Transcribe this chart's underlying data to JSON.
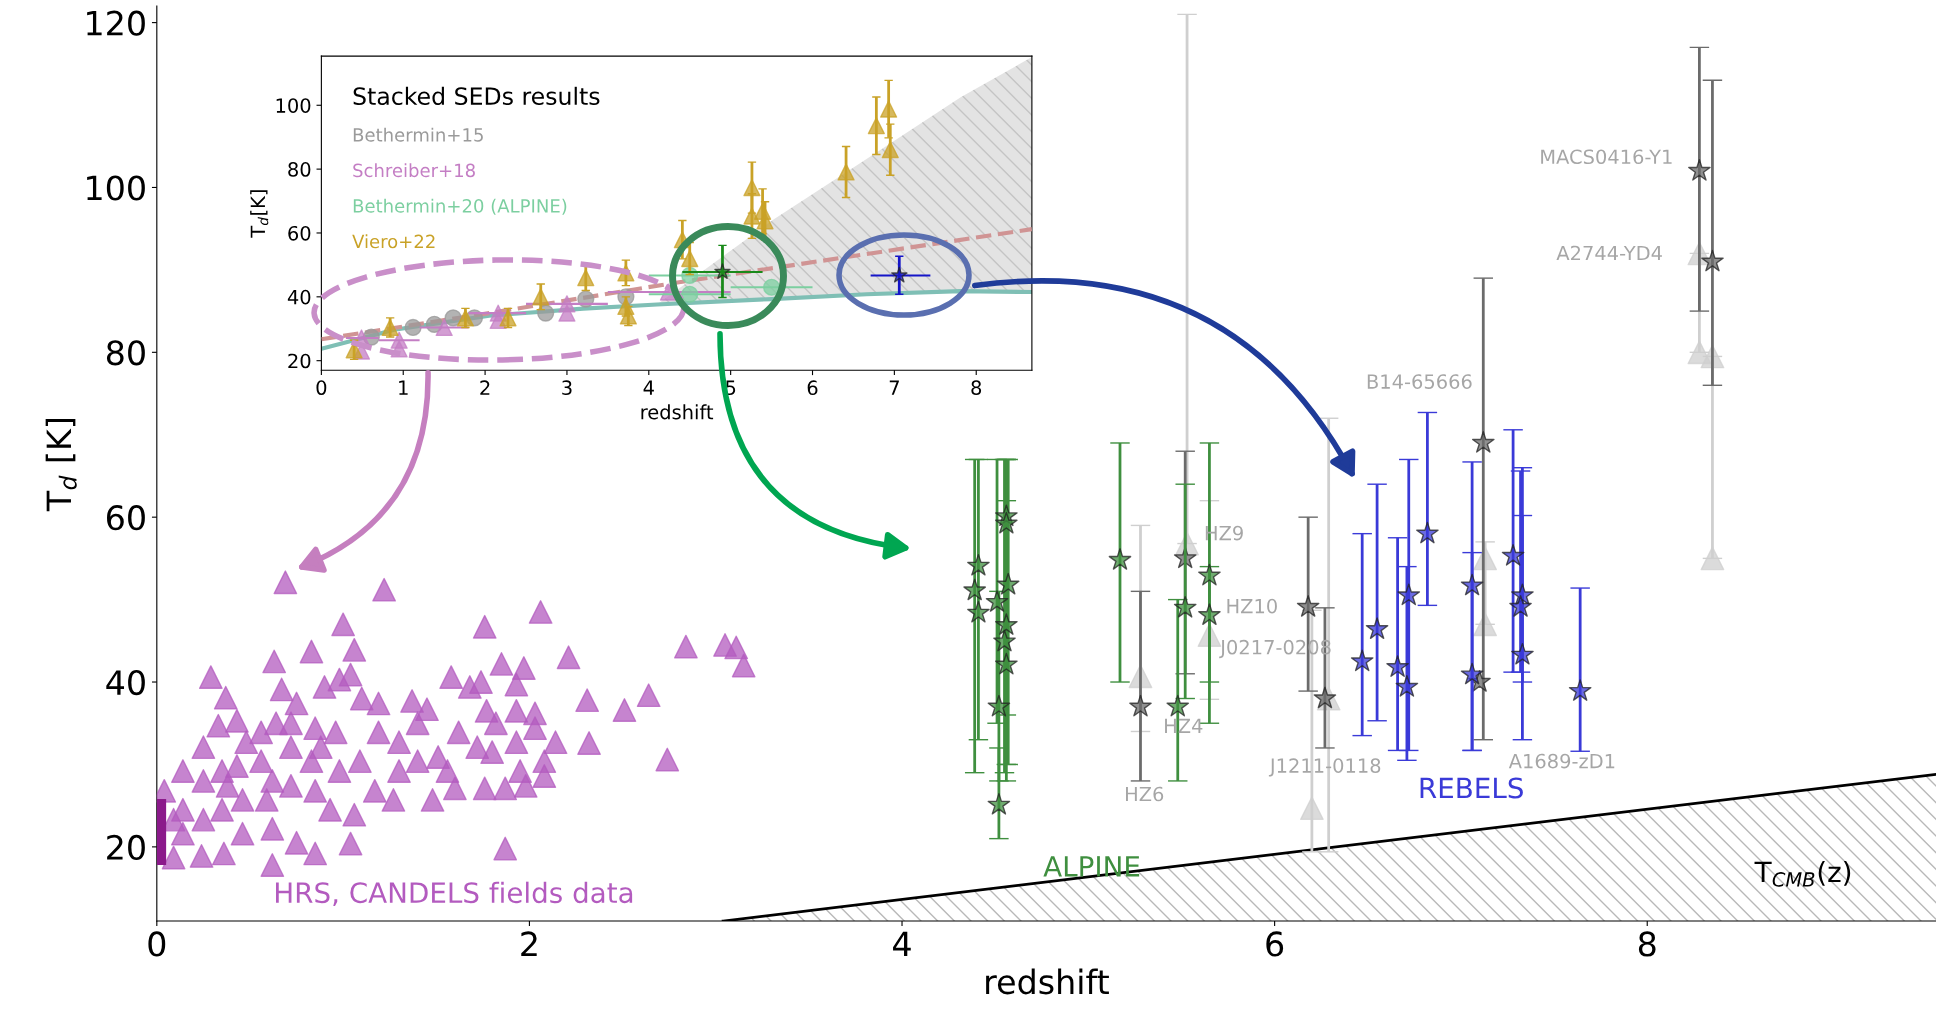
{
  "chart_data": [
    {
      "type": "scatter",
      "xlabel": "redshift",
      "ylabel": "T$_{d}$ [K]",
      "xlim": [
        0,
        9.55
      ],
      "ylim": [
        11,
        122
      ],
      "xticks": [
        0,
        2,
        4,
        6,
        8
      ],
      "yticks": [
        20,
        40,
        60,
        80,
        100,
        120
      ],
      "legend": false,
      "annotations": [
        {
          "text": "MACS0416-Y1",
          "x": 8.28,
          "y": 102.0
        },
        {
          "text": "A2744-YD4",
          "x": 8.35,
          "y": 91.0
        },
        {
          "text": "B14-65666",
          "x": 7.12,
          "y": 69.0
        },
        {
          "text": "HZ9",
          "x": 5.52,
          "y": 55.0
        },
        {
          "text": "HZ10",
          "x": 5.52,
          "y": 49.0
        },
        {
          "text": "J0217-0208",
          "x": 5.65,
          "y": 45.7
        },
        {
          "text": "HZ4",
          "x": 5.48,
          "y": 37.0
        },
        "HZ6",
        "J1211-0118",
        "A1689-zD1"
      ],
      "series": [
        {
          "type": "area",
          "name": "T$_{CMB}$(z)",
          "color": "#000000",
          "x": [
            3.04,
            9.55
          ],
          "values": [
            11.0,
            28.8
          ]
        },
        {
          "name": "HRS, CANDELS fields data",
          "color": "#b35bbf",
          "marker": "triangle",
          "x": [
            0.69,
            1.22,
            1.0,
            1.76,
            2.06,
            0.63,
            0.83,
            1.06,
            0.29,
            0.37,
            0.67,
            0.75,
            0.9,
            0.98,
            1.04,
            1.1,
            1.19,
            1.37,
            1.45,
            1.58,
            1.68,
            1.74,
            1.85,
            1.93,
            1.97,
            1.77,
            1.93,
            2.03,
            2.21,
            2.31,
            2.51,
            2.64,
            2.84,
            3.05,
            3.11,
            3.15,
            2.32,
            2.74,
            2.14,
            2.08,
            1.98,
            1.87,
            1.87,
            1.76,
            1.6,
            1.48,
            1.27,
            1.17,
            1.06,
            1.04,
            0.85,
            0.75,
            0.62,
            0.36,
            0.24,
            0.09,
            0.04,
            0.14,
            0.25,
            0.33,
            0.43,
            0.56,
            0.64,
            0.72,
            0.85,
            0.96,
            0.88,
            0.72,
            0.56,
            0.43,
            0.38,
            0.25,
            0.14,
            0.25,
            0.35,
            0.46,
            0.59,
            0.72,
            0.85,
            0.98,
            1.09,
            1.19,
            1.3,
            1.4,
            1.51,
            1.62,
            1.72,
            1.8,
            1.93,
            2.03,
            1.82,
            1.56,
            1.4,
            1.3,
            1.95,
            2.08,
            0.62,
            0.46,
            0.14,
            0.09,
            0.35,
            0.48,
            0.62,
            0.83,
            0.93
          ],
          "values": [
            52.1,
            51.2,
            47.0,
            46.7,
            48.5,
            42.5,
            43.7,
            43.9,
            40.6,
            38.1,
            39.1,
            37.4,
            39.4,
            40.3,
            40.9,
            38.0,
            37.4,
            37.7,
            36.7,
            40.6,
            39.4,
            40.0,
            42.2,
            39.7,
            41.7,
            36.5,
            36.5,
            36.2,
            43.0,
            37.8,
            36.6,
            38.4,
            44.3,
            44.5,
            44.2,
            42.0,
            32.6,
            30.6,
            32.7,
            30.4,
            27.4,
            27.1,
            19.8,
            27.1,
            27.1,
            25.7,
            25.7,
            26.8,
            23.9,
            20.4,
            19.2,
            20.5,
            17.8,
            19.2,
            18.9,
            18.7,
            26.8,
            29.2,
            32.1,
            34.7,
            35.3,
            33.9,
            35.0,
            35.0,
            34.4,
            33.9,
            32.1,
            32.1,
            30.4,
            29.8,
            27.4,
            28.0,
            24.5,
            23.3,
            24.5,
            25.7,
            25.7,
            27.4,
            26.8,
            29.2,
            30.4,
            33.9,
            32.7,
            35.0,
            30.9,
            33.9,
            32.1,
            31.5,
            32.7,
            34.4,
            35.0,
            29.2,
            30.4,
            29.2,
            29.2,
            28.6,
            22.2,
            21.6,
            21.6,
            23.3,
            29.2,
            32.7,
            28.0,
            30.4,
            24.5
          ]
        },
        {
          "type": "bar",
          "color": "#8b1a8b",
          "x": [
            0.025
          ],
          "values": [
            8.0
          ],
          "base": [
            17.8
          ]
        },
        {
          "color": "#cfcfcf",
          "marker": "triangle",
          "x": [
            5.28,
            5.53,
            5.65,
            6.2,
            6.29,
            7.13,
            7.13,
            8.28,
            8.35,
            8.28,
            8.35
          ],
          "values": [
            40.7,
            56.8,
            45.7,
            24.7,
            38.0,
            55.0,
            47.0,
            80.0,
            55.0,
            92.0,
            79.5
          ],
          "errors": [
            [
              34,
              59
            ],
            [
              56.8,
              121
            ],
            [
              37.9,
              62
            ],
            [
              19.4,
              48.7
            ],
            [
              19.4,
              72
            ],
            [
              47,
              57
            ],
            null,
            [
              80,
              92
            ],
            [
              55,
              79.5
            ],
            null,
            null
          ]
        },
        {
          "color": "#6b6b6b",
          "marker": "star",
          "x": [
            5.28,
            5.52,
            6.18,
            6.27,
            7.12,
            7.1,
            8.28,
            8.35
          ],
          "values": [
            37.0,
            55.0,
            49.1,
            38.0,
            69.0,
            40.0,
            102.0,
            91.0
          ],
          "errors": [
            [
              28,
              51
            ],
            [
              41,
              68
            ],
            [
              38.9,
              60
            ],
            [
              32,
              49
            ],
            [
              33,
              89
            ],
            null,
            [
              85,
              117
            ],
            [
              76,
              113
            ]
          ]
        },
        {
          "name": "ALPINE",
          "color": "#3f8f3f",
          "marker": "star",
          "x": [
            4.41,
            4.39,
            4.41,
            4.56,
            4.56,
            4.57,
            4.51,
            4.56,
            4.55,
            4.56,
            4.52,
            4.52,
            5.17,
            5.48,
            5.52,
            5.65,
            5.65
          ],
          "values": [
            54.1,
            51.1,
            48.4,
            60.1,
            59.2,
            51.8,
            49.7,
            46.9,
            44.9,
            42.1,
            37.0,
            25.1,
            54.8,
            37.0,
            49.0,
            48.1,
            52.9
          ],
          "errors": [
            [
              33,
              67
            ],
            [
              29,
              67
            ],
            null,
            [
              36,
              67
            ],
            null,
            [
              30,
              67
            ],
            [
              35,
              67
            ],
            [
              30,
              67
            ],
            [
              29,
              67
            ],
            [
              28,
              62
            ],
            [
              28,
              51
            ],
            [
              21,
              32
            ],
            [
              40,
              69
            ],
            [
              28,
              50
            ],
            [
              38,
              64
            ],
            [
              40,
              54
            ],
            [
              35,
              69
            ]
          ]
        },
        {
          "name": "REBELS",
          "color": "#3a3ad8",
          "marker": "star",
          "x": [
            6.47,
            6.55,
            6.66,
            6.71,
            6.72,
            6.82,
            7.06,
            7.06,
            7.28,
            7.33,
            7.32,
            7.33,
            7.64
          ],
          "values": [
            42.5,
            46.4,
            41.8,
            39.4,
            50.5,
            58.0,
            51.7,
            40.9,
            55.3,
            50.5,
            49.1,
            43.3,
            38.9
          ],
          "errors": [
            [
              33.5,
              58
            ],
            [
              35.3,
              64
            ],
            [
              31.7,
              57.5
            ],
            [
              30.5,
              54
            ],
            [
              31.7,
              67
            ],
            [
              49.3,
              72.7
            ],
            [
              31.7,
              66.7
            ],
            [
              31.7,
              55.7
            ],
            [
              41.2,
              70.6
            ],
            [
              40,
              66
            ],
            [
              41.2,
              65.6
            ],
            [
              33,
              60.2
            ],
            [
              31.6,
              51.4
            ]
          ]
        }
      ]
    },
    {
      "type": "scatter",
      "xlabel": "redshift",
      "ylabel": "T$_{d}$[K]",
      "xlim": [
        0,
        8.68
      ],
      "ylim": [
        17,
        115.4
      ],
      "xticks": [
        0,
        1,
        2,
        3,
        4,
        5,
        6,
        7,
        8
      ],
      "yticks": [
        20,
        40,
        60,
        80,
        100
      ],
      "legend": "top left",
      "legend_title": "Stacked SEDs results",
      "series": [
        {
          "type": "line",
          "color": "#7fbfb5",
          "line_style": "solid",
          "x": [
            0,
            0.89,
            2.05,
            3.2,
            4.1,
            5.5,
            6.66,
            7.81,
            8.68
          ],
          "values": [
            23.7,
            29.7,
            34.1,
            36.3,
            37.6,
            39.3,
            40.8,
            41.8,
            41.5
          ],
          "lower": [
            23.7,
            29.7,
            34.1,
            36.3,
            37.6,
            39.3,
            40.8,
            41.8,
            41.5
          ],
          "upper": [
            23.7,
            29.7,
            34.1,
            36.3,
            37.6,
            63.8,
            83.2,
            102.5,
            115.1
          ]
        },
        {
          "type": "line",
          "color": "#d09494",
          "line_style": "dashed",
          "x": [
            0,
            2.05,
            4.35,
            6.66,
            8.68
          ],
          "values": [
            26.7,
            34.9,
            44.5,
            53.4,
            61.2
          ]
        },
        {
          "name": "Bethermin+15",
          "color": "#9a9a9a",
          "marker": "circle",
          "x": [
            0.61,
            1.12,
            1.38,
            1.61,
            1.87,
            2.74,
            3.23,
            3.72
          ],
          "values": [
            27.4,
            30.4,
            31.4,
            33.4,
            33.4,
            34.9,
            39.3,
            40.0
          ]
        },
        {
          "name": "Schreiber+18",
          "color": "#c47ec4",
          "marker": "triangle",
          "x": [
            0.49,
            0.49,
            0.95,
            0.95,
            1.5,
            2.16,
            2.16,
            3.0,
            3.0,
            4.24
          ],
          "values": [
            27.1,
            23.0,
            26.4,
            23.7,
            30.4,
            34.9,
            32.6,
            37.8,
            34.9,
            41.5
          ],
          "xerrors": [
            [
              0.3,
              0.7
            ],
            null,
            [
              0.7,
              1.2
            ],
            null,
            [
              1.2,
              1.8
            ],
            [
              1.8,
              2.5
            ],
            null,
            [
              2.5,
              3.5
            ],
            null,
            [
              3.5,
              5.0
            ]
          ]
        },
        {
          "name": "Bethermin+20 (ALPINE)",
          "color": "#7ccfa0",
          "marker": "circle",
          "x": [
            4.5,
            4.5,
            5.5
          ],
          "values": [
            46.7,
            40.8,
            43.0
          ],
          "xerrors": [
            [
              4.0,
              5.0
            ],
            [
              4.0,
              5.0
            ],
            [
              5.0,
              6.0
            ]
          ]
        },
        {
          "name": "Viero+22",
          "color": "#c9a227",
          "marker": "triangle",
          "x": [
            0.4,
            0.84,
            1.76,
            2.28,
            2.68,
            3.23,
            3.72,
            3.72,
            3.75,
            4.41,
            4.5,
            5.26,
            5.26,
            5.39,
            5.42,
            6.41,
            6.78,
            6.93,
            6.95
          ],
          "values": [
            23.4,
            30.4,
            33.4,
            33.4,
            40.0,
            46.0,
            47.5,
            37.0,
            34.0,
            57.9,
            52.0,
            74.2,
            65.3,
            66.8,
            63.8,
            79.1,
            93.6,
            98.8,
            86.1
          ],
          "errors": [
            3,
            3,
            3,
            3,
            4,
            4,
            4,
            3,
            3,
            6,
            5,
            8,
            7,
            7,
            6,
            8,
            9,
            9,
            8
          ]
        },
        {
          "color": "#1a8a1a",
          "marker": "star",
          "x": [
            4.9
          ],
          "values": [
            47.8
          ],
          "errors": [
            [
              39.8,
              56.1
            ]
          ],
          "xerrors": [
            [
              4.41,
              5.39
            ]
          ]
        },
        {
          "color": "#1515c8",
          "marker": "star",
          "x": [
            7.06
          ],
          "values": [
            46.7
          ],
          "errors": [
            [
              40.8,
              52.7
            ]
          ],
          "xerrors": [
            [
              6.71,
              7.44
            ]
          ]
        }
      ]
    }
  ]
}
